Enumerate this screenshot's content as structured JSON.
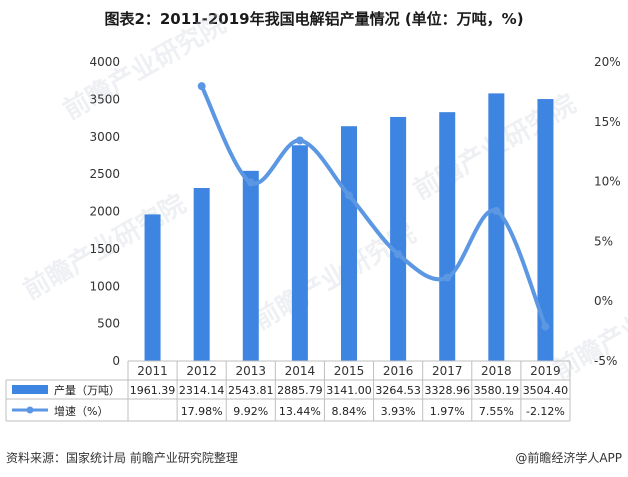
{
  "chart_data": {
    "type": "bar",
    "title": "图表2：2011-2019年我国电解铝产量情况 (单位：万吨，%)",
    "categories": [
      "2011",
      "2012",
      "2013",
      "2014",
      "2015",
      "2016",
      "2017",
      "2018",
      "2019"
    ],
    "series": [
      {
        "name": "产量（万吨）",
        "type": "bar",
        "axis": "left",
        "values": [
          1961.39,
          2314.14,
          2543.81,
          2885.79,
          3141.0,
          3264.53,
          3328.96,
          3580.19,
          3504.4
        ],
        "labels": [
          "1961.39",
          "2314.14",
          "2543.81",
          "2885.79",
          "3141.00",
          "3264.53",
          "3328.96",
          "3580.19",
          "3504.40"
        ]
      },
      {
        "name": "增速（%）",
        "type": "line",
        "axis": "right",
        "values": [
          null,
          17.98,
          9.92,
          13.44,
          8.84,
          3.93,
          1.97,
          7.55,
          -2.12
        ],
        "labels": [
          "",
          "17.98%",
          "9.92%",
          "13.44%",
          "8.84%",
          "3.93%",
          "1.97%",
          "7.55%",
          "-2.12%"
        ]
      }
    ],
    "y_left": {
      "min": 0,
      "max": 4000,
      "ticks": [
        "0",
        "500",
        "1000",
        "1500",
        "2000",
        "2500",
        "3000",
        "3500",
        "4000"
      ]
    },
    "y_right": {
      "min": -5,
      "max": 20,
      "ticks": [
        "-5%",
        "0%",
        "5%",
        "10%",
        "15%",
        "20%"
      ]
    },
    "grid": false,
    "legend": "bottom-table",
    "colors": {
      "bar": "#3d85e0",
      "line": "#5b97e3"
    }
  },
  "source": "资料来源：国家统计局 前瞻产业研究院整理",
  "brand": "@前瞻经济学人APP",
  "watermark": "前瞻产业研究院"
}
